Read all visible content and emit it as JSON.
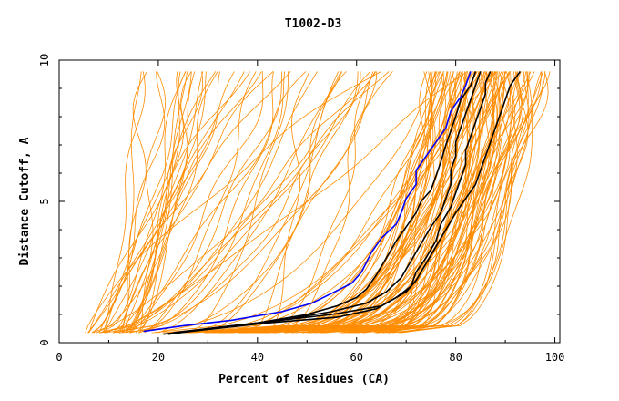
{
  "chart_data": {
    "type": "line",
    "title": "T1002-D3",
    "xlabel": "Percent of Residues (CA)",
    "ylabel": "Distance Cutoff, A",
    "xlim": [
      0,
      101
    ],
    "ylim": [
      0,
      10
    ],
    "xticks": [
      "0",
      "20",
      "40",
      "60",
      "80",
      "100"
    ],
    "yticks": [
      "0",
      "5",
      "10"
    ],
    "grid": false,
    "colors": {
      "background_series": "#ff8c00",
      "highlight_primary": "#0000ff",
      "highlight_secondary": "#000000"
    },
    "series": [
      {
        "color": "#0000ff",
        "points": [
          [
            17,
            0.4
          ],
          [
            25,
            0.6
          ],
          [
            35,
            0.8
          ],
          [
            45,
            1.1
          ],
          [
            51,
            1.4
          ],
          [
            55,
            1.75
          ],
          [
            59,
            2.1
          ],
          [
            61,
            2.5
          ],
          [
            63,
            3.2
          ],
          [
            65,
            3.7
          ],
          [
            68,
            4.2
          ],
          [
            69,
            4.6
          ],
          [
            70,
            5.1
          ],
          [
            72,
            5.6
          ],
          [
            72,
            6.1
          ],
          [
            74,
            6.6
          ],
          [
            76,
            7.1
          ],
          [
            78,
            7.6
          ],
          [
            79,
            8.2
          ],
          [
            81,
            8.7
          ],
          [
            82,
            9.1
          ],
          [
            83,
            9.6
          ]
        ]
      },
      {
        "color": "#000000",
        "points": [
          [
            21,
            0.3
          ],
          [
            30,
            0.5
          ],
          [
            40,
            0.7
          ],
          [
            50,
            1.0
          ],
          [
            56,
            1.3
          ],
          [
            60,
            1.6
          ],
          [
            62,
            1.9
          ],
          [
            64,
            2.4
          ],
          [
            66,
            3.0
          ],
          [
            68,
            3.6
          ],
          [
            70,
            4.1
          ],
          [
            72,
            4.6
          ],
          [
            73,
            5.0
          ],
          [
            75,
            5.4
          ],
          [
            76,
            5.9
          ],
          [
            77,
            6.4
          ],
          [
            78,
            7.0
          ],
          [
            79,
            7.5
          ],
          [
            80,
            8.0
          ],
          [
            81,
            8.6
          ],
          [
            83,
            9.1
          ],
          [
            84,
            9.6
          ]
        ]
      },
      {
        "color": "#000000",
        "points": [
          [
            22,
            0.3
          ],
          [
            35,
            0.6
          ],
          [
            45,
            0.8
          ],
          [
            55,
            1.1
          ],
          [
            62,
            1.4
          ],
          [
            66,
            1.8
          ],
          [
            69,
            2.3
          ],
          [
            71,
            2.9
          ],
          [
            73,
            3.5
          ],
          [
            75,
            4.1
          ],
          [
            77,
            4.6
          ],
          [
            78,
            5.1
          ],
          [
            79,
            5.6
          ],
          [
            79,
            6.1
          ],
          [
            80,
            6.6
          ],
          [
            80,
            7.1
          ],
          [
            81,
            7.6
          ],
          [
            82,
            8.1
          ],
          [
            83,
            8.6
          ],
          [
            84,
            9.1
          ],
          [
            85,
            9.6
          ]
        ]
      },
      {
        "color": "#000000",
        "points": [
          [
            23,
            0.35
          ],
          [
            40,
            0.7
          ],
          [
            55,
            1.0
          ],
          [
            65,
            1.3
          ],
          [
            68,
            1.6
          ],
          [
            71,
            2.0
          ],
          [
            72,
            2.5
          ],
          [
            74,
            3.0
          ],
          [
            76,
            3.6
          ],
          [
            77,
            4.2
          ],
          [
            79,
            4.8
          ],
          [
            80,
            5.3
          ],
          [
            81,
            5.8
          ],
          [
            82,
            6.3
          ],
          [
            82,
            6.8
          ],
          [
            83,
            7.3
          ],
          [
            84,
            7.8
          ],
          [
            85,
            8.3
          ],
          [
            86,
            8.8
          ],
          [
            86,
            9.2
          ],
          [
            87,
            9.6
          ]
        ]
      },
      {
        "color": "#000000",
        "points": [
          [
            24,
            0.35
          ],
          [
            42,
            0.7
          ],
          [
            56,
            0.9
          ],
          [
            64,
            1.2
          ],
          [
            70,
            1.8
          ],
          [
            72,
            2.2
          ],
          [
            74,
            2.8
          ],
          [
            76,
            3.4
          ],
          [
            78,
            4.0
          ],
          [
            80,
            4.6
          ],
          [
            82,
            5.1
          ],
          [
            84,
            5.6
          ],
          [
            85,
            6.1
          ],
          [
            86,
            6.6
          ],
          [
            87,
            7.1
          ],
          [
            88,
            7.6
          ],
          [
            89,
            8.1
          ],
          [
            90,
            8.6
          ],
          [
            91,
            9.1
          ],
          [
            93,
            9.6
          ]
        ]
      }
    ]
  }
}
